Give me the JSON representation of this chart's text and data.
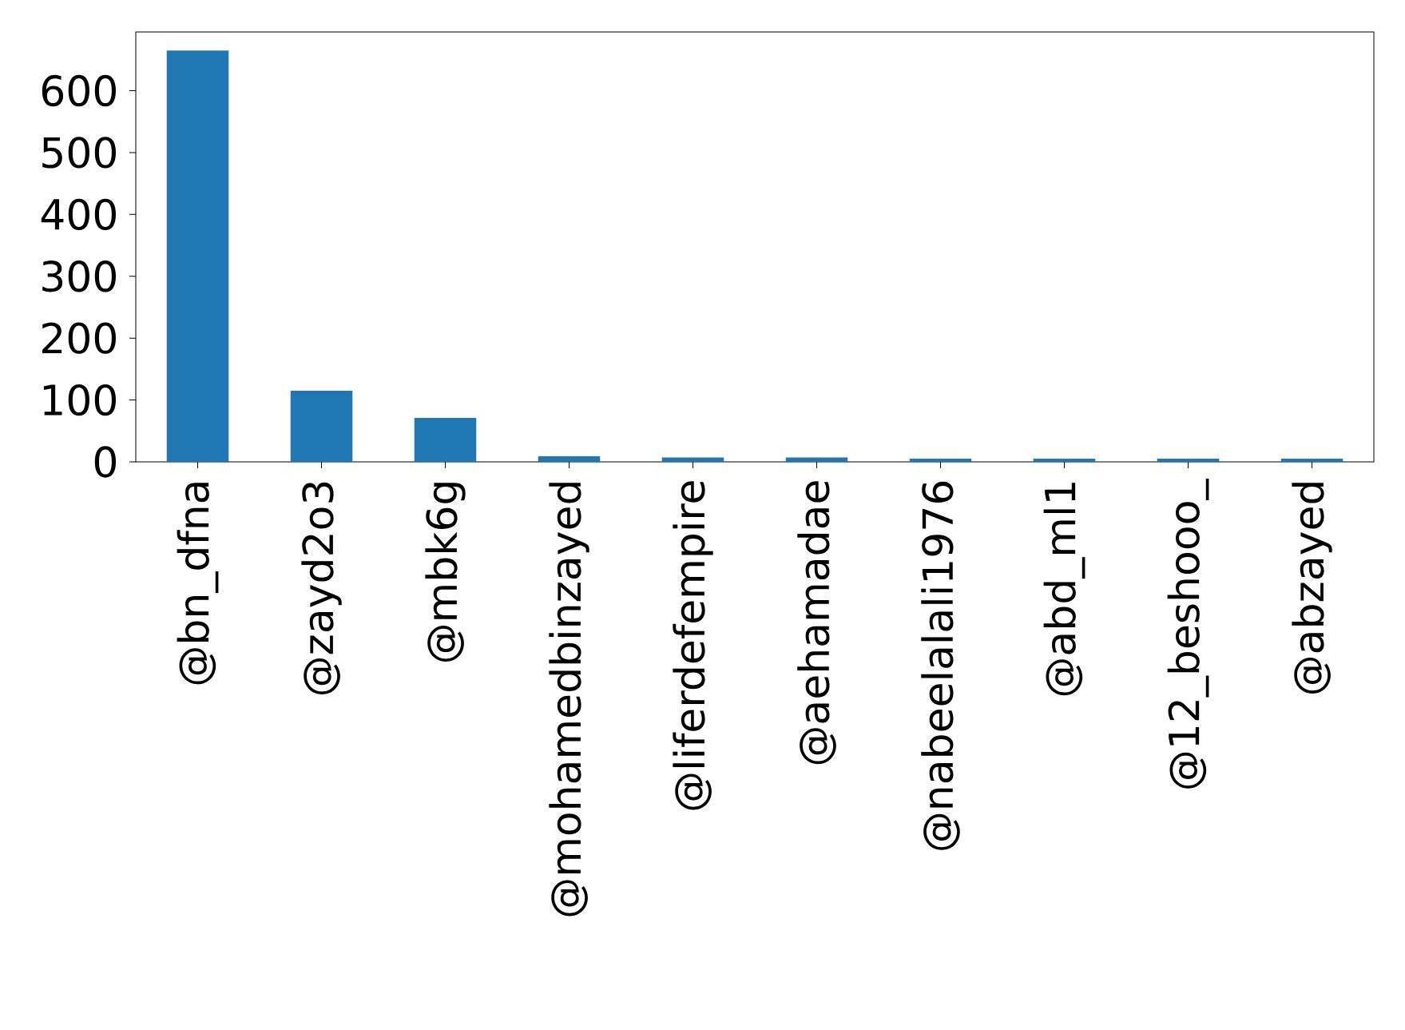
{
  "chart_data": {
    "type": "bar",
    "categories": [
      "@bn_dfna",
      "@zayd2o3",
      "@mbk6g",
      "@mohamedbinzayed",
      "@liferdefempire",
      "@aehamadae",
      "@nabeelalali1976",
      "@abd_ml1",
      "@12_beshooo_",
      "@abzayed"
    ],
    "values": [
      665,
      115,
      71,
      9,
      7,
      7,
      5,
      5,
      5,
      5
    ],
    "color": "#1f77b4",
    "ylim": [
      0,
      695
    ],
    "yticks": [
      0,
      100,
      200,
      300,
      400,
      500,
      600
    ],
    "grid": false
  }
}
